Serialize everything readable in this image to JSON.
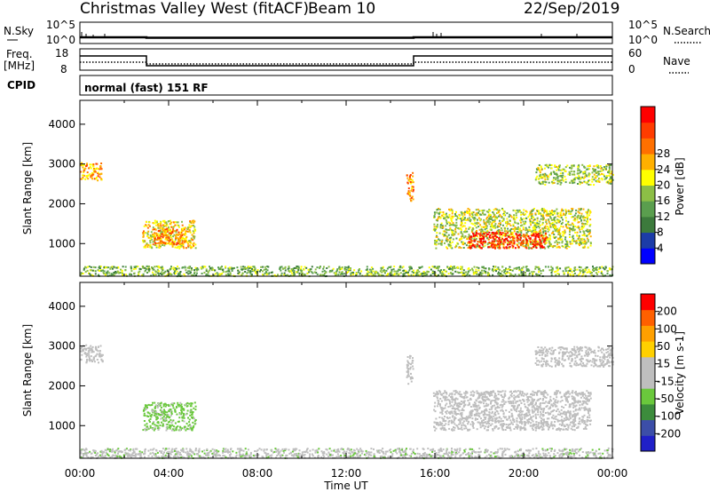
{
  "header": {
    "title": "Christmas Valley West (fitACF)",
    "beam": "Beam 10",
    "date": "22/Sep/2019"
  },
  "nsky_panel": {
    "left_label": "N.Sky",
    "right_label": "N.Search",
    "left_ticks": [
      "10^5",
      "10^0"
    ],
    "right_ticks": [
      "10^5",
      "10^0"
    ]
  },
  "freq_panel": {
    "left_label_line1": "Freq.",
    "left_label_line2": "[MHz]",
    "right_label": "Nave",
    "left_ticks": [
      "18",
      "8"
    ],
    "right_ticks": [
      "60",
      "0"
    ]
  },
  "cpid": {
    "label": "CPID",
    "text": "normal (fast) 151 RF"
  },
  "time_axis": {
    "label": "Time UT",
    "ticks": [
      "00:00",
      "04:00",
      "08:00",
      "12:00",
      "16:00",
      "20:00",
      "00:00"
    ]
  },
  "colors": {
    "power_scale": [
      "#0000ff",
      "#1c3ca8",
      "#3c7a3c",
      "#5a9e4e",
      "#8cbe46",
      "#ffff00",
      "#ffb000",
      "#ff7000",
      "#ff3c00",
      "#ff0000"
    ],
    "velocity_scale": [
      "#2020c8",
      "#3c4ea8",
      "#3c8c3c",
      "#6ac83c",
      "#bebebe",
      "#bebebe",
      "#ffd000",
      "#ffa000",
      "#ff6000",
      "#ff0000"
    ]
  },
  "chart_data": [
    {
      "type": "line",
      "title": "N.Sky",
      "x_unit": "hours UT",
      "series": [
        {
          "values": [
            [
              0,
              1.0
            ],
            [
              3,
              1.0
            ],
            [
              3,
              1.0
            ],
            [
              15,
              1.0
            ],
            [
              24,
              1.0
            ]
          ]
        }
      ]
    },
    {
      "type": "line",
      "title": "Freq. [MHz] / Nave",
      "x_unit": "hours UT",
      "ylim": [
        8,
        18
      ],
      "series": [
        {
          "name": "Freq.",
          "values": [
            [
              0,
              14.5
            ],
            [
              3,
              14.5
            ],
            [
              3,
              10.5
            ],
            [
              15,
              10.5
            ],
            [
              15,
              14.5
            ],
            [
              24,
              14.5
            ]
          ]
        },
        {
          "name": "Nave",
          "values": [
            [
              0,
              30
            ],
            [
              3,
              30
            ],
            [
              3,
              26
            ],
            [
              15,
              26
            ],
            [
              15,
              30
            ],
            [
              24,
              30
            ]
          ]
        }
      ]
    },
    {
      "type": "heatmap",
      "title": "Power [dB]",
      "xlabel": "Time UT",
      "ylabel": "Slant Range [km]",
      "xlim": [
        0,
        24
      ],
      "ylim": [
        180,
        4600
      ],
      "x_ticks": [
        "00:00",
        "04:00",
        "08:00",
        "12:00",
        "16:00",
        "20:00",
        "00:00"
      ],
      "y_ticks": [
        1000,
        2000,
        3000,
        4000
      ],
      "colorbar": {
        "label": "Power [dB]",
        "ticks": [
          "4",
          "8",
          "12",
          "16",
          "20",
          "24",
          "28"
        ],
        "range": [
          0,
          30
        ]
      },
      "regions": [
        {
          "t0": 0.0,
          "t1": 1.0,
          "r0": 2600,
          "r1": 3050,
          "value": 20
        },
        {
          "t0": 2.8,
          "t1": 5.2,
          "r0": 900,
          "r1": 1600,
          "value": 17
        },
        {
          "t0": 3.3,
          "t1": 4.8,
          "r0": 1000,
          "r1": 1400,
          "value": 22
        },
        {
          "t0": 14.7,
          "t1": 15.0,
          "r0": 2050,
          "r1": 2800,
          "value": 22
        },
        {
          "t0": 15.9,
          "t1": 23.0,
          "r0": 900,
          "r1": 1900,
          "value": 15
        },
        {
          "t0": 17.5,
          "t1": 21.0,
          "r0": 900,
          "r1": 1300,
          "value": 27
        },
        {
          "t0": 20.5,
          "t1": 24.0,
          "r0": 2500,
          "r1": 3000,
          "value": 14
        },
        {
          "t0": 0.0,
          "t1": 24.0,
          "r0": 200,
          "r1": 450,
          "value": 12
        }
      ]
    },
    {
      "type": "heatmap",
      "title": "Velocity [m s-1]",
      "xlabel": "Time UT",
      "ylabel": "Slant Range [km]",
      "xlim": [
        0,
        24
      ],
      "ylim": [
        180,
        4600
      ],
      "x_ticks": [
        "00:00",
        "04:00",
        "08:00",
        "12:00",
        "16:00",
        "20:00",
        "00:00"
      ],
      "y_ticks": [
        1000,
        2000,
        3000,
        4000
      ],
      "colorbar": {
        "label": "Velocity [m s-1]",
        "ticks": [
          "200",
          "100",
          "50",
          "15",
          "-15",
          "-50",
          "-100",
          "-200"
        ],
        "range": [
          -250,
          250
        ]
      },
      "regions": [
        {
          "t0": 0.0,
          "t1": 1.0,
          "r0": 2600,
          "r1": 3050,
          "value": 0
        },
        {
          "t0": 2.8,
          "t1": 5.2,
          "r0": 900,
          "r1": 1600,
          "value": -60
        },
        {
          "t0": 14.7,
          "t1": 15.0,
          "r0": 2050,
          "r1": 2800,
          "value": 0
        },
        {
          "t0": 15.9,
          "t1": 23.0,
          "r0": 900,
          "r1": 1900,
          "value": 0
        },
        {
          "t0": 20.5,
          "t1": 24.0,
          "r0": 2500,
          "r1": 3000,
          "value": 0
        },
        {
          "t0": 0.0,
          "t1": 24.0,
          "r0": 200,
          "r1": 450,
          "value": -40
        }
      ]
    }
  ]
}
